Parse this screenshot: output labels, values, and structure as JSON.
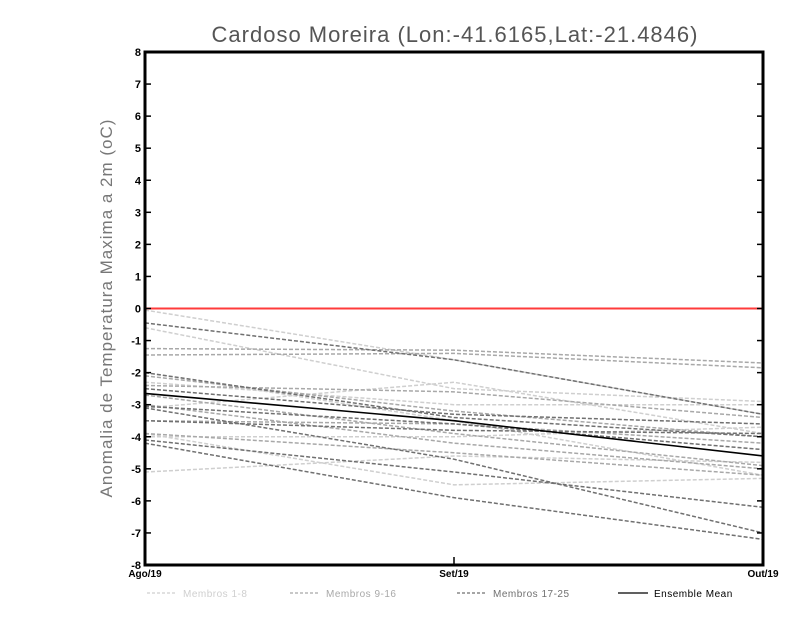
{
  "chart_data": {
    "type": "line",
    "title": "Cardoso Moreira (Lon:-41.6165,Lat:-21.4846)",
    "ylabel": "Anomalia de Temperatura Maxima a 2m (oC)",
    "xlabel": "",
    "categories": [
      "Ago/19",
      "Set/19",
      "Out/19"
    ],
    "ylim": [
      -8,
      8
    ],
    "yticks": [
      "8",
      "7",
      "6",
      "5",
      "4",
      "3",
      "2",
      "1",
      "0",
      "-1",
      "-2",
      "-3",
      "-4",
      "-5",
      "-6",
      "-7",
      "-8"
    ],
    "reference_line": {
      "value": 0,
      "color": "#ff3b3b"
    },
    "legend": {
      "placement": "bottom",
      "entries": [
        "Membros 1-8",
        "Membros 9-16",
        "Membros 17-25",
        "Ensemble Mean"
      ]
    },
    "groups": [
      {
        "name": "Membros 1-8",
        "color": "#cfcfcf",
        "series": [
          [
            -0.05,
            -1.6,
            -3.3
          ],
          [
            -0.6,
            -2.5,
            -2.9
          ],
          [
            -2.0,
            -3.5,
            -5.2
          ],
          [
            -5.1,
            -4.6,
            -4.8
          ],
          [
            -3.1,
            -2.3,
            -3.9
          ],
          [
            -3.9,
            -5.5,
            -5.3
          ],
          [
            -2.3,
            -3.0,
            -3.0
          ],
          [
            -4.0,
            -4.0,
            -3.7
          ]
        ]
      },
      {
        "name": "Membros 9-16",
        "color": "#a8a8a8",
        "series": [
          [
            -1.25,
            -1.3,
            -1.7
          ],
          [
            -1.45,
            -1.4,
            -1.85
          ],
          [
            -2.1,
            -3.2,
            -4.0
          ],
          [
            -2.4,
            -2.6,
            -3.4
          ],
          [
            -3.0,
            -4.2,
            -5.0
          ],
          [
            -3.5,
            -3.6,
            -4.2
          ],
          [
            -3.9,
            -4.5,
            -5.2
          ],
          [
            -2.7,
            -3.9,
            -4.9
          ]
        ]
      },
      {
        "name": "Membros 17-25",
        "color": "#707070",
        "series": [
          [
            -0.45,
            -1.6,
            -3.3
          ],
          [
            -2.0,
            -3.4,
            -4.0
          ],
          [
            -2.5,
            -3.3,
            -3.6
          ],
          [
            -3.05,
            -3.6,
            -4.4
          ],
          [
            -3.5,
            -3.8,
            -3.9
          ],
          [
            -4.2,
            -5.9,
            -7.2
          ],
          [
            -4.1,
            -5.1,
            -6.2
          ],
          [
            -3.1,
            -4.7,
            -7.0
          ]
        ]
      }
    ],
    "ensemble_mean": {
      "name": "Ensemble Mean",
      "color": "#000000",
      "values": [
        -2.65,
        -3.5,
        -4.6
      ]
    }
  }
}
